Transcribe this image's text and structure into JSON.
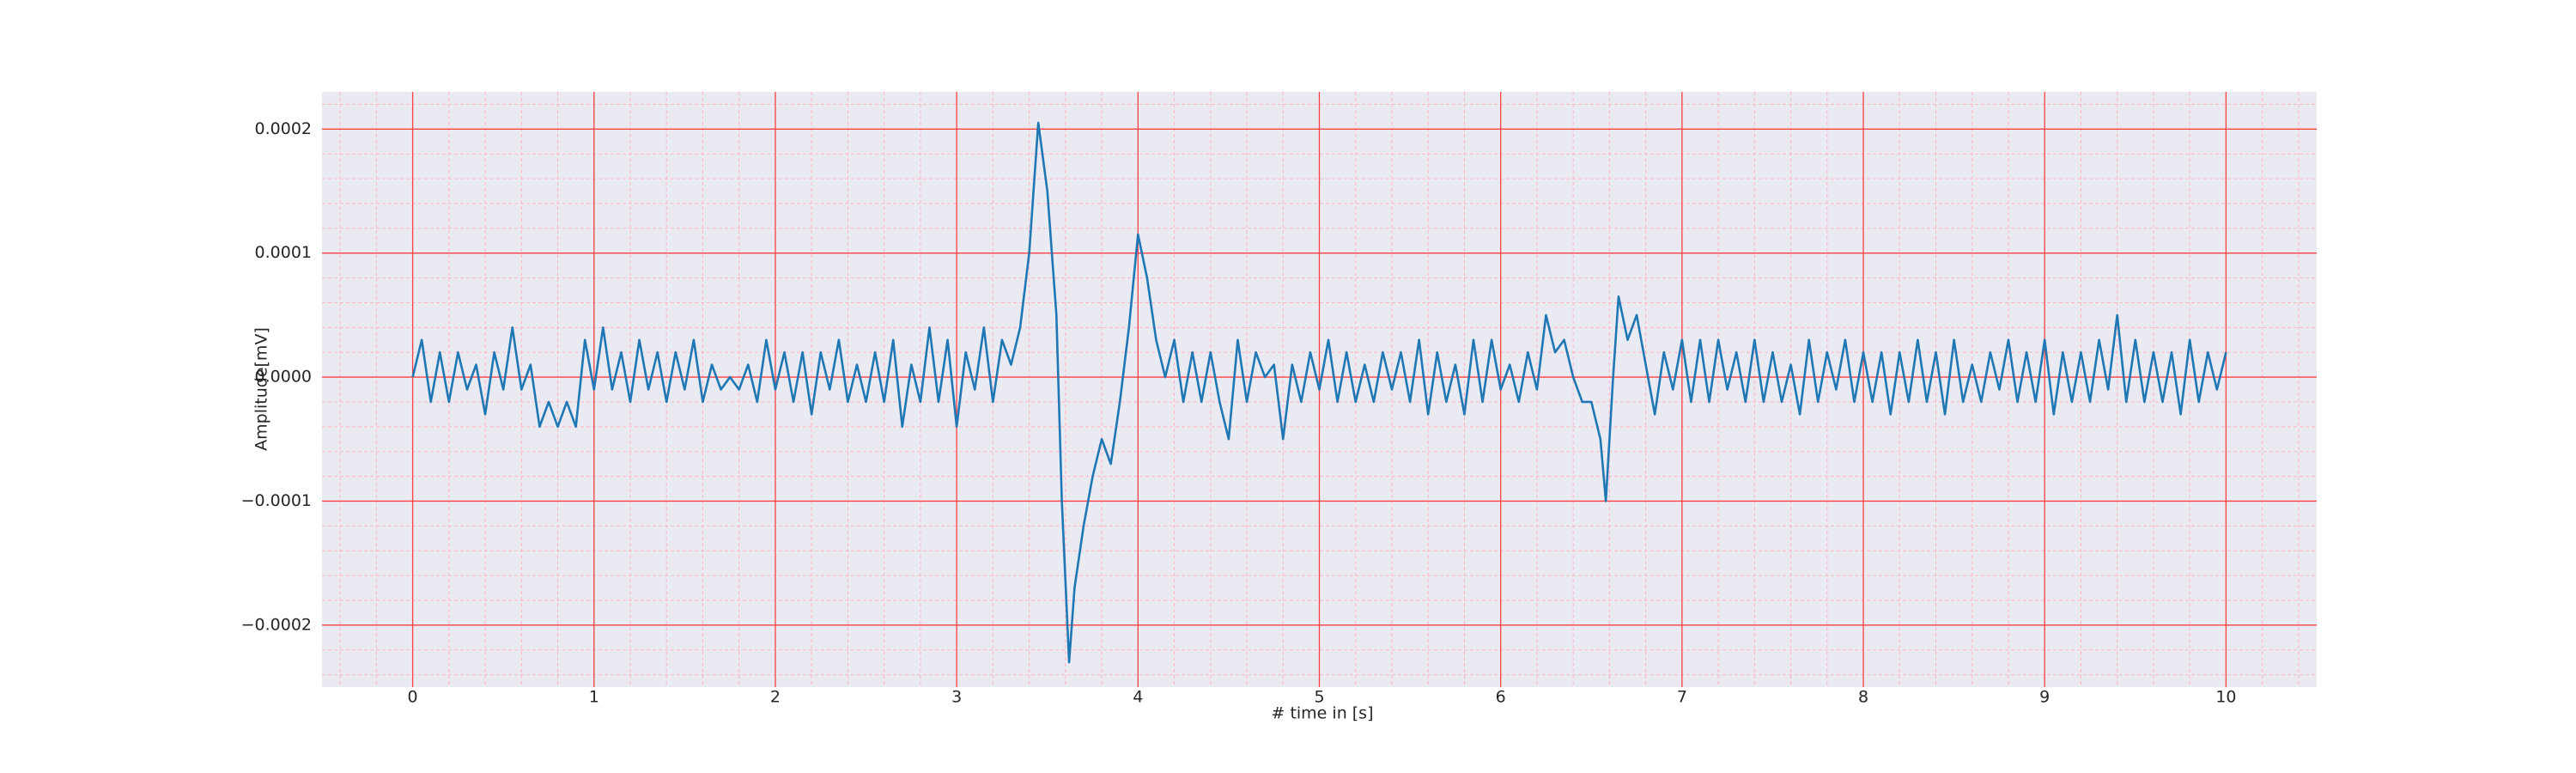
{
  "chart_data": {
    "type": "line",
    "xlabel": "# time in [s]",
    "ylabel": "Amplitude[mV]",
    "color": "#1f77b4",
    "grid": true,
    "minor_grid": true,
    "xlim": [
      -0.5,
      10.5
    ],
    "ylim": [
      -0.00025,
      0.00023
    ],
    "xticks": [
      0,
      1,
      2,
      3,
      4,
      5,
      6,
      7,
      8,
      9,
      10
    ],
    "yticks": [
      {
        "value": -0.0002,
        "label": "−0.0002"
      },
      {
        "value": -0.0001,
        "label": "−0.0001"
      },
      {
        "value": 0,
        "label": "0.0000"
      },
      {
        "value": 0.0001,
        "label": "0.0001"
      },
      {
        "value": 0.0002,
        "label": "0.0002"
      }
    ],
    "x": [
      0,
      0.05,
      0.1,
      0.15,
      0.2,
      0.25,
      0.3,
      0.35,
      0.4,
      0.45,
      0.5,
      0.55,
      0.6,
      0.65,
      0.7,
      0.75,
      0.8,
      0.85,
      0.9,
      0.95,
      1,
      1.05,
      1.1,
      1.15,
      1.2,
      1.25,
      1.3,
      1.35,
      1.4,
      1.45,
      1.5,
      1.55,
      1.6,
      1.65,
      1.7,
      1.75,
      1.8,
      1.85,
      1.9,
      1.95,
      2,
      2.05,
      2.1,
      2.15,
      2.2,
      2.25,
      2.3,
      2.35,
      2.4,
      2.45,
      2.5,
      2.55,
      2.6,
      2.65,
      2.7,
      2.75,
      2.8,
      2.85,
      2.9,
      2.95,
      3,
      3.05,
      3.1,
      3.15,
      3.2,
      3.25,
      3.3,
      3.35,
      3.4,
      3.45,
      3.5,
      3.55,
      3.58,
      3.62,
      3.65,
      3.7,
      3.75,
      3.8,
      3.85,
      3.9,
      3.95,
      4,
      4.05,
      4.1,
      4.15,
      4.2,
      4.25,
      4.3,
      4.35,
      4.4,
      4.45,
      4.5,
      4.55,
      4.6,
      4.65,
      4.7,
      4.75,
      4.8,
      4.85,
      4.9,
      4.95,
      5,
      5.05,
      5.1,
      5.15,
      5.2,
      5.25,
      5.3,
      5.35,
      5.4,
      5.45,
      5.5,
      5.55,
      5.6,
      5.65,
      5.7,
      5.75,
      5.8,
      5.85,
      5.9,
      5.95,
      6,
      6.05,
      6.1,
      6.15,
      6.2,
      6.25,
      6.3,
      6.35,
      6.4,
      6.45,
      6.5,
      6.55,
      6.58,
      6.62,
      6.65,
      6.7,
      6.75,
      6.8,
      6.85,
      6.9,
      6.95,
      7,
      7.05,
      7.1,
      7.15,
      7.2,
      7.25,
      7.3,
      7.35,
      7.4,
      7.45,
      7.5,
      7.55,
      7.6,
      7.65,
      7.7,
      7.75,
      7.8,
      7.85,
      7.9,
      7.95,
      8,
      8.05,
      8.1,
      8.15,
      8.2,
      8.25,
      8.3,
      8.35,
      8.4,
      8.45,
      8.5,
      8.55,
      8.6,
      8.65,
      8.7,
      8.75,
      8.8,
      8.85,
      8.9,
      8.95,
      9,
      9.05,
      9.1,
      9.15,
      9.2,
      9.25,
      9.3,
      9.35,
      9.4,
      9.45,
      9.5,
      9.55,
      9.6,
      9.65,
      9.7,
      9.75,
      9.8,
      9.85,
      9.9,
      9.95,
      10
    ],
    "values": [
      0,
      3e-05,
      -2e-05,
      2e-05,
      -2e-05,
      2e-05,
      -1e-05,
      1e-05,
      -3e-05,
      2e-05,
      -1e-05,
      4e-05,
      -1e-05,
      1e-05,
      -4e-05,
      -2e-05,
      -4e-05,
      -2e-05,
      -4e-05,
      3e-05,
      -1e-05,
      4e-05,
      -1e-05,
      2e-05,
      -2e-05,
      3e-05,
      -1e-05,
      2e-05,
      -2e-05,
      2e-05,
      -1e-05,
      3e-05,
      -2e-05,
      1e-05,
      -1e-05,
      0,
      -1e-05,
      1e-05,
      -2e-05,
      3e-05,
      -1e-05,
      2e-05,
      -2e-05,
      2e-05,
      -3e-05,
      2e-05,
      -1e-05,
      3e-05,
      -2e-05,
      1e-05,
      -2e-05,
      2e-05,
      -2e-05,
      3e-05,
      -4e-05,
      1e-05,
      -2e-05,
      4e-05,
      -2e-05,
      3e-05,
      -4e-05,
      2e-05,
      -1e-05,
      4e-05,
      -2e-05,
      3e-05,
      1e-05,
      4e-05,
      0.0001,
      0.000205,
      0.00015,
      5e-05,
      -0.0001,
      -0.00023,
      -0.00017,
      -0.00012,
      -8e-05,
      -5e-05,
      -7e-05,
      -2e-05,
      4e-05,
      0.000115,
      8e-05,
      3e-05,
      0,
      3e-05,
      -2e-05,
      2e-05,
      -2e-05,
      2e-05,
      -2e-05,
      -5e-05,
      3e-05,
      -2e-05,
      2e-05,
      0,
      1e-05,
      -5e-05,
      1e-05,
      -2e-05,
      2e-05,
      -1e-05,
      3e-05,
      -2e-05,
      2e-05,
      -2e-05,
      1e-05,
      -2e-05,
      2e-05,
      -1e-05,
      2e-05,
      -2e-05,
      3e-05,
      -3e-05,
      2e-05,
      -2e-05,
      1e-05,
      -3e-05,
      3e-05,
      -2e-05,
      3e-05,
      -1e-05,
      1e-05,
      -2e-05,
      2e-05,
      -1e-05,
      5e-05,
      2e-05,
      3e-05,
      0,
      -2e-05,
      -2e-05,
      -5e-05,
      -0.0001,
      0,
      6.5e-05,
      3e-05,
      5e-05,
      1e-05,
      -3e-05,
      2e-05,
      -1e-05,
      3e-05,
      -2e-05,
      3e-05,
      -2e-05,
      3e-05,
      -1e-05,
      2e-05,
      -2e-05,
      3e-05,
      -2e-05,
      2e-05,
      -2e-05,
      1e-05,
      -3e-05,
      3e-05,
      -2e-05,
      2e-05,
      -1e-05,
      3e-05,
      -2e-05,
      2e-05,
      -2e-05,
      2e-05,
      -3e-05,
      2e-05,
      -2e-05,
      3e-05,
      -2e-05,
      2e-05,
      -3e-05,
      3e-05,
      -2e-05,
      1e-05,
      -2e-05,
      2e-05,
      -1e-05,
      3e-05,
      -2e-05,
      2e-05,
      -2e-05,
      3e-05,
      -3e-05,
      2e-05,
      -2e-05,
      2e-05,
      -2e-05,
      3e-05,
      -1e-05,
      5e-05,
      -2e-05,
      3e-05,
      -2e-05,
      2e-05,
      -2e-05,
      2e-05,
      -3e-05,
      3e-05,
      -2e-05,
      2e-05,
      -1e-05,
      2e-05
    ]
  }
}
